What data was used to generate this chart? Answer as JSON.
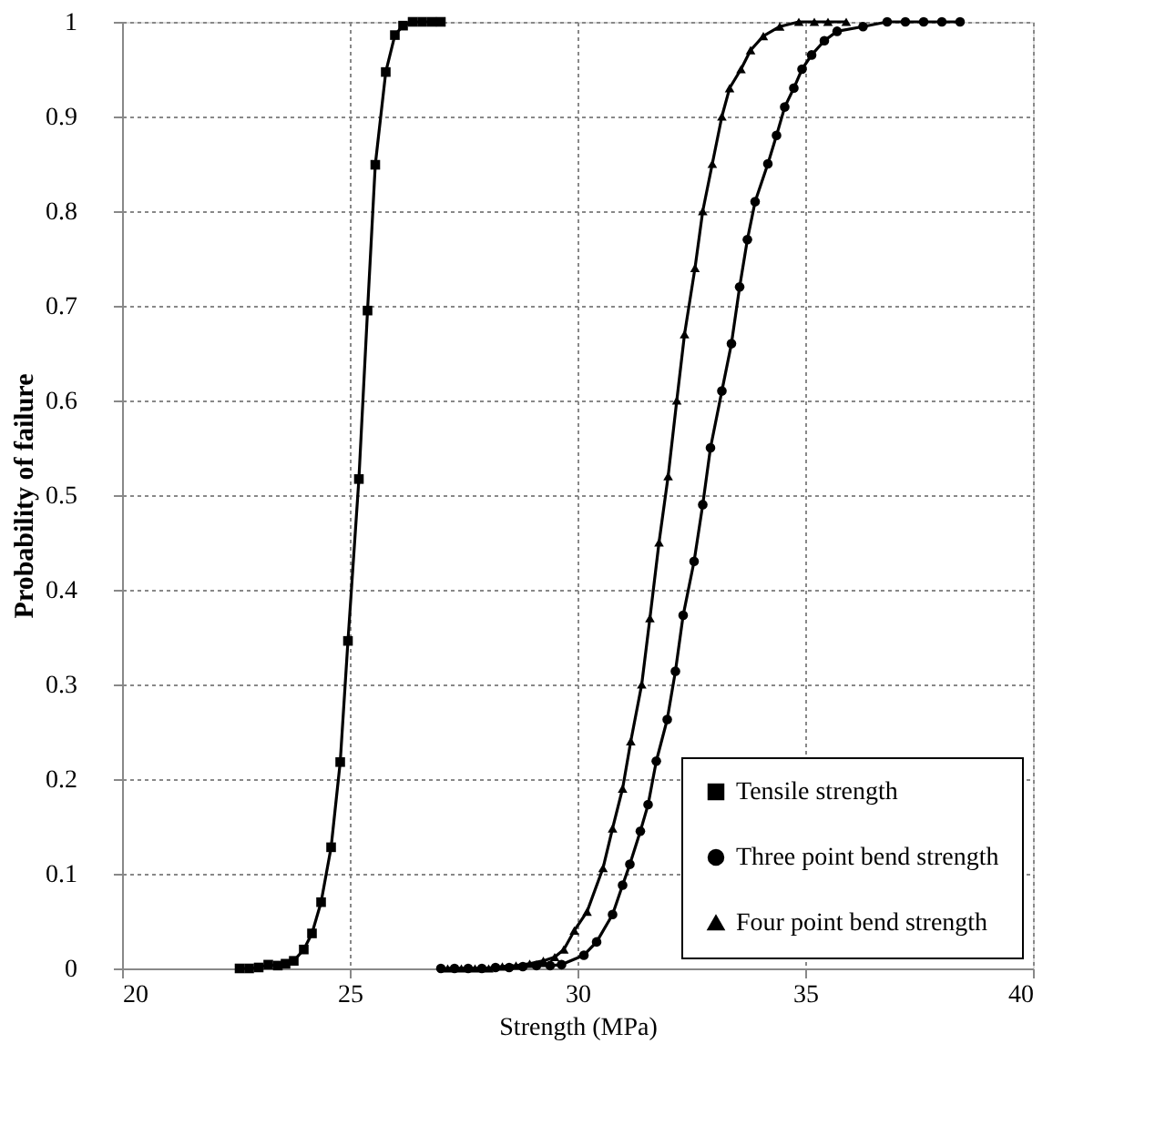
{
  "chart_data": {
    "type": "line",
    "xlabel": "Strength (MPa)",
    "ylabel": "Probability of failure",
    "xlim": [
      20,
      40
    ],
    "xticks": [
      20,
      25,
      30,
      35,
      40
    ],
    "ylim": [
      0,
      1
    ],
    "yticks": [
      0,
      0.1,
      0.2,
      0.3,
      0.4,
      0.5,
      0.6,
      0.7,
      0.8,
      0.9,
      1
    ],
    "grid": true,
    "legend": "bottom right",
    "line_style": "solid",
    "series": [
      {
        "name": "Tensile strength",
        "color": "#000000",
        "marker": "square",
        "x": [
          22.58,
          22.79,
          23.0,
          23.21,
          23.42,
          23.59,
          23.77,
          23.99,
          24.17,
          24.37,
          24.59,
          24.79,
          24.96,
          25.2,
          25.39,
          25.56,
          25.79,
          25.99,
          26.17,
          26.38,
          26.59,
          26.8,
          27.0
        ],
        "values": [
          0,
          0,
          0.001,
          0.004,
          0.003,
          0.005,
          0.008,
          0.02,
          0.037,
          0.07,
          0.128,
          0.218,
          0.346,
          0.517,
          0.695,
          0.849,
          0.947,
          0.986,
          0.996,
          1,
          1,
          1,
          1
        ]
      },
      {
        "name": "Three point bend strength",
        "color": "#000000",
        "marker": "circle",
        "x": [
          27.0,
          27.3,
          27.6,
          27.9,
          28.2,
          28.5,
          28.8,
          29.1,
          29.4,
          29.65,
          30.14,
          30.42,
          30.77,
          30.99,
          31.15,
          31.38,
          31.55,
          31.73,
          31.97,
          32.15,
          32.32,
          32.56,
          32.75,
          32.92,
          33.17,
          33.38,
          33.56,
          33.73,
          33.9,
          34.18,
          34.37,
          34.55,
          34.75,
          34.93,
          35.14,
          35.42,
          35.7,
          36.27,
          36.8,
          37.2,
          37.6,
          38.0,
          38.4
        ],
        "values": [
          0,
          0,
          0,
          0,
          0.001,
          0.001,
          0.002,
          0.003,
          0.003,
          0.004,
          0.014,
          0.028,
          0.057,
          0.088,
          0.11,
          0.145,
          0.173,
          0.219,
          0.263,
          0.314,
          0.373,
          0.43,
          0.49,
          0.55,
          0.61,
          0.66,
          0.72,
          0.77,
          0.81,
          0.85,
          0.88,
          0.91,
          0.93,
          0.95,
          0.965,
          0.98,
          0.99,
          0.995,
          1,
          1,
          1,
          1,
          1
        ]
      },
      {
        "name": "Four point bend strength",
        "color": "#000000",
        "marker": "triangle",
        "x": [
          27.15,
          27.45,
          27.75,
          28.05,
          28.35,
          28.65,
          28.95,
          29.25,
          29.5,
          29.7,
          29.93,
          30.21,
          30.56,
          30.77,
          30.99,
          31.17,
          31.41,
          31.59,
          31.79,
          31.99,
          32.18,
          32.35,
          32.58,
          32.75,
          32.96,
          33.17,
          33.34,
          33.59,
          33.8,
          34.08,
          34.44,
          34.86,
          35.2,
          35.5,
          35.9
        ],
        "values": [
          0,
          0,
          0,
          0,
          0.002,
          0.003,
          0.005,
          0.008,
          0.012,
          0.02,
          0.04,
          0.06,
          0.106,
          0.148,
          0.19,
          0.24,
          0.3,
          0.37,
          0.45,
          0.52,
          0.6,
          0.67,
          0.74,
          0.8,
          0.85,
          0.9,
          0.93,
          0.95,
          0.97,
          0.985,
          0.995,
          1,
          1,
          1,
          1
        ]
      }
    ]
  }
}
